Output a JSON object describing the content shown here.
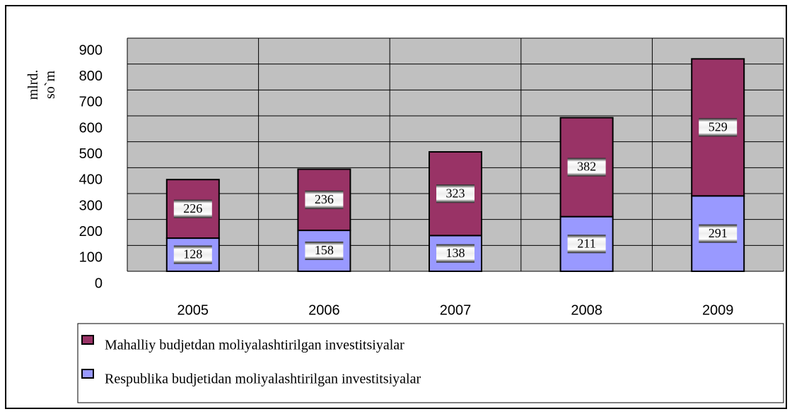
{
  "chart_data": {
    "type": "stacked_bar",
    "y_label": [
      "mlrd.",
      "so`m"
    ],
    "categories": [
      "2005",
      "2006",
      "2007",
      "2008",
      "2009"
    ],
    "series": [
      {
        "name": "Respublika budjetidan moliyalashtirilgan investitsiyalar",
        "color": "#9999ff",
        "values": [
          128,
          158,
          138,
          211,
          291
        ]
      },
      {
        "name": "Mahalliy budjetdan moliyalashtirilgan investitsiyalar",
        "color": "#993366",
        "values": [
          226,
          236,
          323,
          382,
          529
        ]
      }
    ],
    "ylim": [
      0,
      900
    ],
    "yticks": [
      0,
      100,
      200,
      300,
      400,
      500,
      600,
      700,
      800,
      900
    ],
    "grid": true,
    "legend": "bottom"
  }
}
